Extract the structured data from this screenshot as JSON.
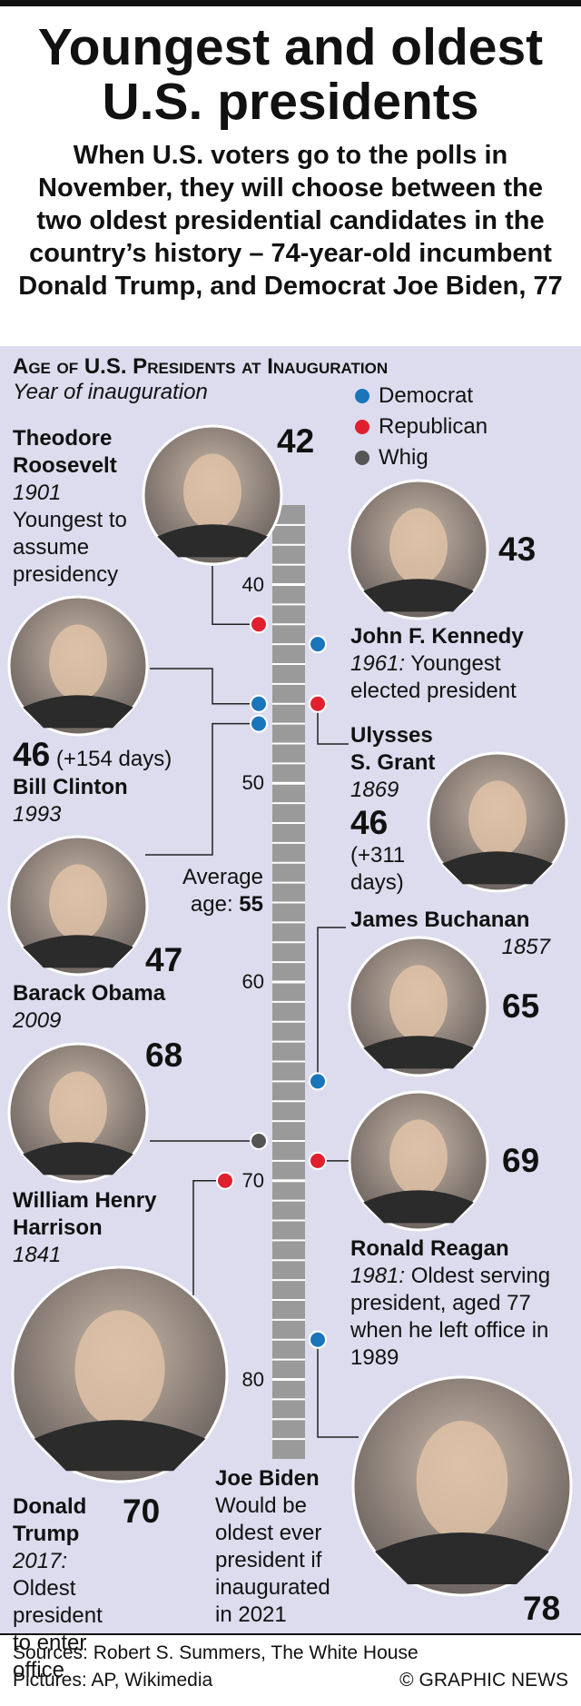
{
  "header": {
    "title_lines": [
      "Youngest and oldest",
      "U.S. presidents"
    ],
    "subtitle": "When U.S. voters go to the polls in November, they will choose between the two oldest presidential candidates in the country’s history – 74-year-old incumbent Donald Trump, and Democrat Joe Biden, 77"
  },
  "chart": {
    "title": "Age of U.S. Presidents at Inauguration",
    "subtitle": "Year of inauguration",
    "legend": [
      {
        "name": "Democrat",
        "color": "#1a75bb"
      },
      {
        "name": "Republican",
        "color": "#e0202e"
      },
      {
        "name": "Whig",
        "color": "#555555"
      }
    ],
    "ylim": [
      36,
      84
    ],
    "yticks": [
      40,
      50,
      60,
      70,
      80
    ],
    "average": {
      "label_lines": [
        "Average",
        "age:"
      ],
      "value": 55
    },
    "presidents": [
      {
        "name": "Theodore Roosevelt",
        "year": "1901",
        "note": "Youngest to assume presidency",
        "age": 42,
        "party": "Republican"
      },
      {
        "name": "John F. Kennedy",
        "year": "1961:",
        "note": "Youngest elected president",
        "age": 43,
        "party": "Democrat"
      },
      {
        "name": "Bill Clinton",
        "year": "1993",
        "age": 46,
        "age_extra": "(+154 days)",
        "party": "Democrat"
      },
      {
        "name": "Barack Obama",
        "year": "2009",
        "age": 47,
        "party": "Democrat"
      },
      {
        "name": "Ulysses S. Grant",
        "year": "1869",
        "age": 46,
        "age_extra": "(+311 days)",
        "party": "Republican"
      },
      {
        "name": "James Buchanan",
        "year": "1857",
        "age": 65,
        "party": "Democrat"
      },
      {
        "name": "William Henry Harrison",
        "year": "1841",
        "age": 68,
        "party": "Whig"
      },
      {
        "name": "Ronald Reagan",
        "year": "1981:",
        "note": "Oldest serving president, aged 77 when he left office in 1989",
        "age": 69,
        "party": "Republican"
      },
      {
        "name": "Donald Trump",
        "year": "2017:",
        "note": "Oldest president to enter office",
        "age": 70,
        "party": "Republican"
      },
      {
        "name": "Joe Biden",
        "note": "Would be oldest ever president if inaugurated in 2021",
        "age": 78,
        "party": "Democrat"
      }
    ]
  },
  "footer": {
    "sources": "Sources: Robert S. Summers, The White House",
    "pictures": "Pictures: AP, Wikimedia",
    "credit": "© GRAPHIC NEWS"
  }
}
